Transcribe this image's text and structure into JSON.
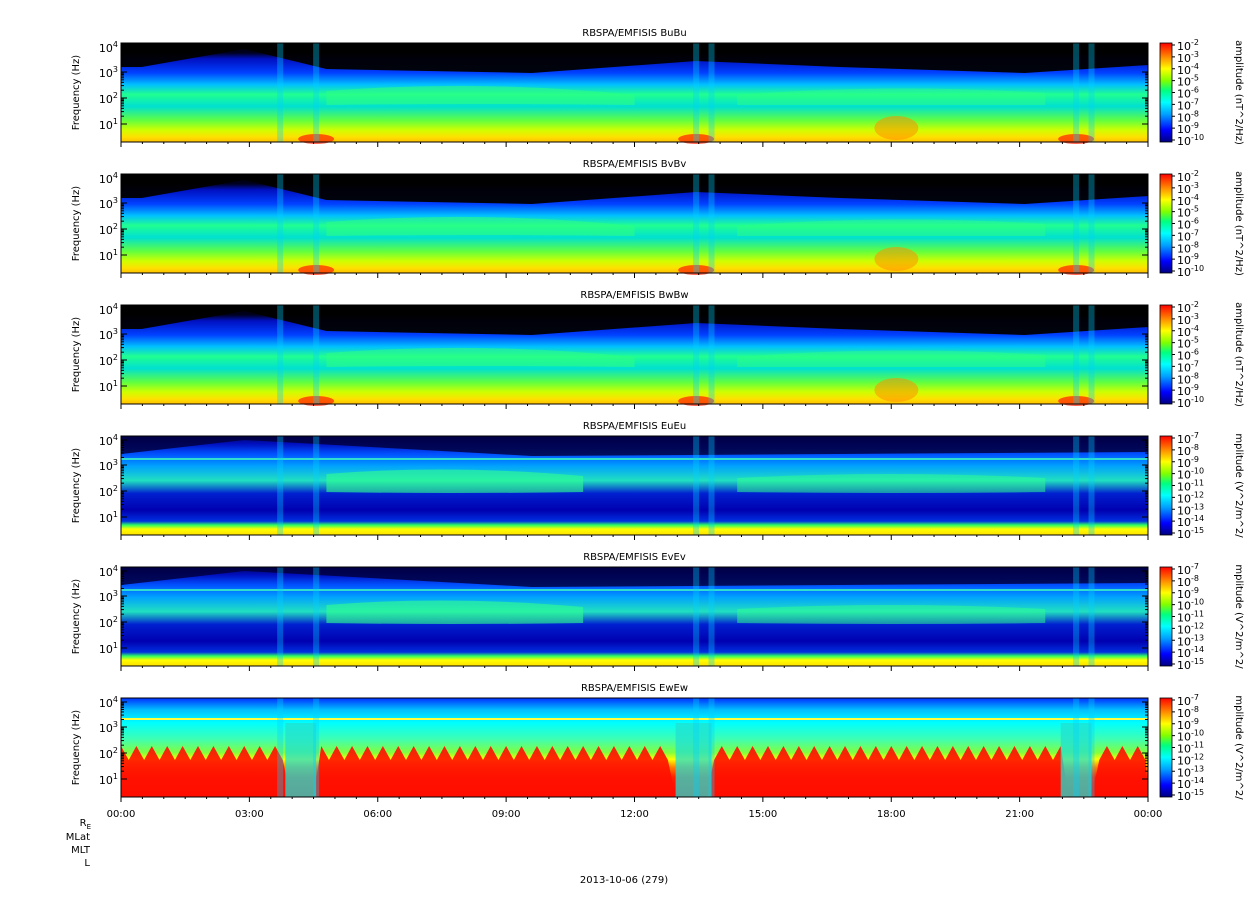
{
  "panels": [
    {
      "title": "RBSPA/EMFISIS  BuBu",
      "kind": "B",
      "cbar_label": "amplitude (nT^2/Hz)",
      "cbar_ticks": [
        {
          "m": "10",
          "e": "-2"
        },
        {
          "m": "10",
          "e": "-3"
        },
        {
          "m": "10",
          "e": "-4"
        },
        {
          "m": "10",
          "e": "-5"
        },
        {
          "m": "10",
          "e": "-6"
        },
        {
          "m": "10",
          "e": "-7"
        },
        {
          "m": "10",
          "e": "-8"
        },
        {
          "m": "10",
          "e": "-9"
        },
        {
          "m": "10",
          "e": "-10"
        }
      ]
    },
    {
      "title": "RBSPA/EMFISIS  BvBv",
      "kind": "B",
      "cbar_label": "amplitude (nT^2/Hz)",
      "cbar_ticks": [
        {
          "m": "10",
          "e": "-2"
        },
        {
          "m": "10",
          "e": "-3"
        },
        {
          "m": "10",
          "e": "-4"
        },
        {
          "m": "10",
          "e": "-5"
        },
        {
          "m": "10",
          "e": "-6"
        },
        {
          "m": "10",
          "e": "-7"
        },
        {
          "m": "10",
          "e": "-8"
        },
        {
          "m": "10",
          "e": "-9"
        },
        {
          "m": "10",
          "e": "-10"
        }
      ]
    },
    {
      "title": "RBSPA/EMFISIS  BwBw",
      "kind": "B",
      "cbar_label": "amplitude (nT^2/Hz)",
      "cbar_ticks": [
        {
          "m": "10",
          "e": "-2"
        },
        {
          "m": "10",
          "e": "-3"
        },
        {
          "m": "10",
          "e": "-4"
        },
        {
          "m": "10",
          "e": "-5"
        },
        {
          "m": "10",
          "e": "-6"
        },
        {
          "m": "10",
          "e": "-7"
        },
        {
          "m": "10",
          "e": "-8"
        },
        {
          "m": "10",
          "e": "-9"
        },
        {
          "m": "10",
          "e": "-10"
        }
      ]
    },
    {
      "title": "RBSPA/EMFISIS  EuEu",
      "kind": "E",
      "cbar_label": "mplitude (V^2/m^2/",
      "cbar_ticks": [
        {
          "m": "10",
          "e": "-7"
        },
        {
          "m": "10",
          "e": "-8"
        },
        {
          "m": "10",
          "e": "-9"
        },
        {
          "m": "10",
          "e": "-10"
        },
        {
          "m": "10",
          "e": "-11"
        },
        {
          "m": "10",
          "e": "-12"
        },
        {
          "m": "10",
          "e": "-13"
        },
        {
          "m": "10",
          "e": "-14"
        },
        {
          "m": "10",
          "e": "-15"
        }
      ]
    },
    {
      "title": "RBSPA/EMFISIS  EvEv",
      "kind": "E",
      "cbar_label": "mplitude (V^2/m^2/",
      "cbar_ticks": [
        {
          "m": "10",
          "e": "-7"
        },
        {
          "m": "10",
          "e": "-8"
        },
        {
          "m": "10",
          "e": "-9"
        },
        {
          "m": "10",
          "e": "-10"
        },
        {
          "m": "10",
          "e": "-11"
        },
        {
          "m": "10",
          "e": "-12"
        },
        {
          "m": "10",
          "e": "-13"
        },
        {
          "m": "10",
          "e": "-14"
        },
        {
          "m": "10",
          "e": "-15"
        }
      ]
    },
    {
      "title": "RBSPA/EMFISIS  EwEw",
      "kind": "Ew",
      "cbar_label": "mplitude (V^2/m^2/",
      "cbar_ticks": [
        {
          "m": "10",
          "e": "-7"
        },
        {
          "m": "10",
          "e": "-8"
        },
        {
          "m": "10",
          "e": "-9"
        },
        {
          "m": "10",
          "e": "-10"
        },
        {
          "m": "10",
          "e": "-11"
        },
        {
          "m": "10",
          "e": "-12"
        },
        {
          "m": "10",
          "e": "-13"
        },
        {
          "m": "10",
          "e": "-14"
        },
        {
          "m": "10",
          "e": "-15"
        }
      ]
    }
  ],
  "ylabel": "Frequency (Hz)",
  "ytick_labels": [
    {
      "m": "10",
      "e": "4"
    },
    {
      "m": "10",
      "e": "3"
    },
    {
      "m": "10",
      "e": "2"
    },
    {
      "m": "10",
      "e": "1"
    }
  ],
  "xtick_labels": [
    "00:00",
    "03:00",
    "06:00",
    "09:00",
    "12:00",
    "15:00",
    "18:00",
    "21:00",
    "00:00"
  ],
  "ephem_labels": {
    "re": "R",
    "re_sub": "E",
    "mlat": "MLat",
    "mlt": "MLT",
    "l": "L"
  },
  "date_label": "2013-10-06 (279)",
  "chart_data": {
    "type": "heatmap",
    "panels": [
      "BuBu",
      "BvBv",
      "BwBw",
      "EuEu",
      "EvEv",
      "EwEw"
    ],
    "x_range": [
      "00:00",
      "00:00"
    ],
    "x_ticks": [
      "00:00",
      "03:00",
      "06:00",
      "09:00",
      "12:00",
      "15:00",
      "18:00",
      "21:00",
      "00:00"
    ],
    "y_scale": "log",
    "y_ticks": [
      10000,
      1000,
      100,
      10
    ],
    "y_label": "Frequency (Hz)",
    "colorbar_B": {
      "scale": "log",
      "range": [
        1e-10,
        0.01
      ],
      "label": "amplitude (nT^2/Hz)"
    },
    "colorbar_E": {
      "scale": "log",
      "range": [
        1e-15,
        1e-07
      ],
      "label": "mplitude (V^2/m^2/"
    },
    "date": "2013-10-06 (279)",
    "colormap": [
      "#000080",
      "#0000ff",
      "#00a0ff",
      "#00ffff",
      "#00ff80",
      "#80ff00",
      "#ffff00",
      "#ff8000",
      "#ff0000"
    ]
  }
}
